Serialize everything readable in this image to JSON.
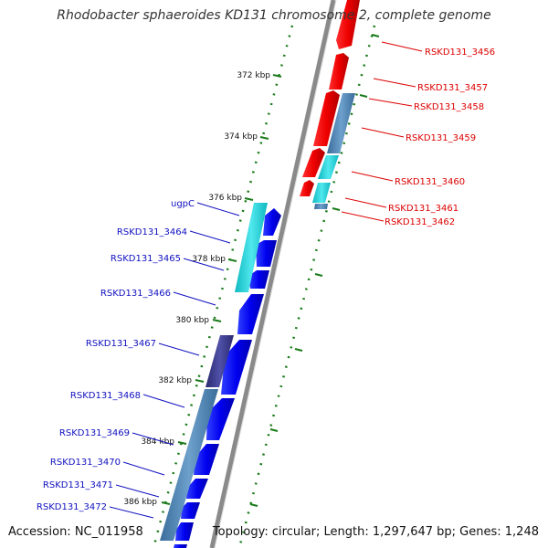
{
  "title": "Rhodobacter sphaeroides KD131 chromosome 2, complete genome",
  "accession": "Accession: NC_011958",
  "topology": "Topology: circular; Length: 1,297,647 bp; Genes: 1,248",
  "colors": {
    "plus_strand_label": "#dd0000",
    "minus_strand_label": "#1010c0",
    "backbone": "#808080",
    "tick": "#1a7a1a"
  },
  "kbp_ticks": [
    "372 kbp",
    "374 kbp",
    "376 kbp",
    "378 kbp",
    "380 kbp",
    "382 kbp",
    "384 kbp",
    "386 kbp"
  ],
  "plus_strand_genes": [
    "RSKD131_3456",
    "RSKD131_3457",
    "RSKD131_3458",
    "RSKD131_3459",
    "RSKD131_3460",
    "RSKD131_3461",
    "RSKD131_3462"
  ],
  "minus_strand_genes": [
    "ugpC",
    "RSKD131_3464",
    "RSKD131_3465",
    "RSKD131_3466",
    "RSKD131_3467",
    "RSKD131_3468",
    "RSKD131_3469",
    "RSKD131_3470",
    "RSKD131_3471",
    "RSKD131_3472"
  ]
}
